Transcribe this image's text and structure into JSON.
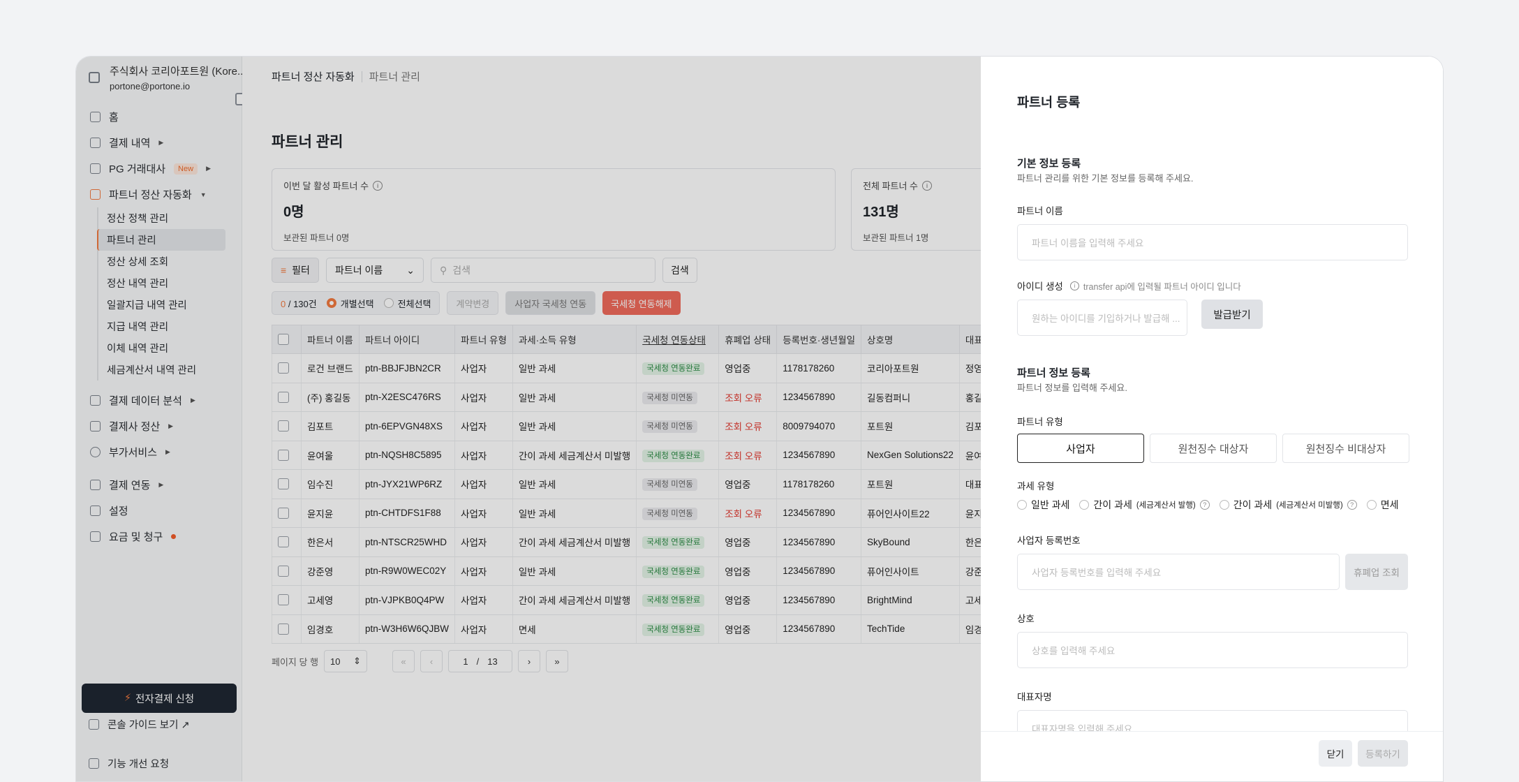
{
  "sidebar": {
    "org_name": "주식회사 코리아포트원 (Kore...",
    "org_email": "portone@portone.io",
    "nav": [
      {
        "label": "홈"
      },
      {
        "label": "결제 내역"
      },
      {
        "label": "PG 거래대사",
        "badge": "New"
      },
      {
        "label": "파트너 정산 자동화"
      }
    ],
    "sub": [
      "정산 정책 관리",
      "파트너 관리",
      "정산 상세 조회",
      "정산 내역 관리",
      "일괄지급 내역 관리",
      "지급 내역 관리",
      "이체 내역 관리",
      "세금계산서 내역 관리"
    ],
    "nav2": [
      {
        "label": "결제 데이터 분석"
      },
      {
        "label": "결제사 정산"
      },
      {
        "label": "부가서비스"
      },
      {
        "label": "결제 연동"
      },
      {
        "label": "설정"
      },
      {
        "label": "요금 및 청구"
      }
    ],
    "cta": "전자결제 신청",
    "guide": "콘솔 가이드 보기 ↗",
    "feedback": "기능 개선 요청"
  },
  "main": {
    "crumb1": "파트너 정산 자동화",
    "crumb2": "파트너 관리",
    "title": "파트너 관리",
    "card1": {
      "label": "이번 달 활성 파트너 수",
      "value": "0명",
      "sub": "보관된 파트너 0명"
    },
    "card2": {
      "label": "전체 파트너 수",
      "value": "131명",
      "sub": "보관된 파트너 1명"
    },
    "filter": "필터",
    "select": "파트너 이름",
    "search_placeholder": "검색",
    "search_btn": "검색",
    "count_sel": "0",
    "count_total": " / 130건",
    "radio1": "개별선택",
    "radio2": "전체선택",
    "btn_contract": "계약변경",
    "btn_link": "사업자 국세청 연동",
    "btn_unlink": "국세청 연동해제",
    "columns": [
      "파트너 이름",
      "파트너 아이디",
      "파트너 유형",
      "과세·소득 유형",
      "국세청 연동상태",
      "휴폐업 상태",
      "등록번호·생년월일",
      "상호명",
      "대표"
    ],
    "rows": [
      [
        "로건 브랜드",
        "ptn-BBJFJBN2CR",
        "사업자",
        "일반 과세",
        "국세청 연동완료",
        "영업중",
        "1178178260",
        "코리아포트원",
        "정영"
      ],
      [
        "(주) 홍길동",
        "ptn-X2ESC476RS",
        "사업자",
        "일반 과세",
        "국세청 미연동",
        "조회 오류",
        "1234567890",
        "길동컴퍼니",
        "홍길"
      ],
      [
        "김포트",
        "ptn-6EPVGN48XS",
        "사업자",
        "일반 과세",
        "국세청 미연동",
        "조회 오류",
        "8009794070",
        "포트원",
        "김포"
      ],
      [
        "윤여울",
        "ptn-NQSH8C5895",
        "사업자",
        "간이 과세 세금계산서 미발행",
        "국세청 연동완료",
        "조회 오류",
        "1234567890",
        "NexGen Solutions22",
        "윤여"
      ],
      [
        "임수진",
        "ptn-JYX21WP6RZ",
        "사업자",
        "일반 과세",
        "국세청 미연동",
        "영업중",
        "1178178260",
        "포트원",
        "대표"
      ],
      [
        "윤지윤",
        "ptn-CHTDFS1F88",
        "사업자",
        "일반 과세",
        "국세청 미연동",
        "조회 오류",
        "1234567890",
        "퓨어인사이트22",
        "윤지"
      ],
      [
        "한은서",
        "ptn-NTSCR25WHD",
        "사업자",
        "간이 과세 세금계산서 미발행",
        "국세청 연동완료",
        "영업중",
        "1234567890",
        "SkyBound",
        "한은"
      ],
      [
        "강준영",
        "ptn-R9W0WEC02Y",
        "사업자",
        "일반 과세",
        "국세청 연동완료",
        "영업중",
        "1234567890",
        "퓨어인사이트",
        "강준"
      ],
      [
        "고세영",
        "ptn-VJPKB0Q4PW",
        "사업자",
        "간이 과세 세금계산서 미발행",
        "국세청 연동완료",
        "영업중",
        "1234567890",
        "BrightMind",
        "고세"
      ],
      [
        "임경호",
        "ptn-W3H6W6QJBW",
        "사업자",
        "면세",
        "국세청 연동완료",
        "영업중",
        "1234567890",
        "TechTide",
        "임경"
      ]
    ],
    "pager": {
      "per_page_label": "페이지 당 행",
      "per_page": "10",
      "first": "«",
      "prev": "‹",
      "page": "1",
      "slash": "/",
      "total": "13",
      "next": "›",
      "last": "»"
    }
  },
  "drawer": {
    "title": "파트너 등록",
    "basic_title": "기본 정보 등록",
    "basic_sub": "파트너 관리를 위한 기본 정보를 등록해 주세요.",
    "name_label": "파트너 이름",
    "name_placeholder": "파트너 이름을 입력해 주세요",
    "id_label": "아이디 생성",
    "id_hint": "transfer api에 입력될 파트너 아이디 입니다",
    "id_placeholder": "원하는 아이디를 기입하거나 발급해 ...",
    "issue_btn": "발급받기",
    "partner_title": "파트너 정보 등록",
    "partner_sub": "파트너 정보를 입력해 주세요.",
    "type_label": "파트너 유형",
    "type_opts": [
      "사업자",
      "원천징수 대상자",
      "원천징수 비대상자"
    ],
    "tax_label": "과세 유형",
    "tax_opts": [
      "일반 과세",
      "간이 과세",
      "(세금계산서 발행)",
      "간이 과세",
      "(세금계산서 미발행)",
      "면세"
    ],
    "biz_label": "사업자 등록번호",
    "biz_placeholder": "사업자 등록번호를 입력해 주세요",
    "lookup_btn": "휴폐업 조회",
    "trade_label": "상호",
    "trade_placeholder": "상호를 입력해 주세요",
    "ceo_label": "대표자명",
    "ceo_placeholder": "대표자명을 입력해 주세요",
    "close_btn": "닫기",
    "register_btn": "등록하기"
  }
}
